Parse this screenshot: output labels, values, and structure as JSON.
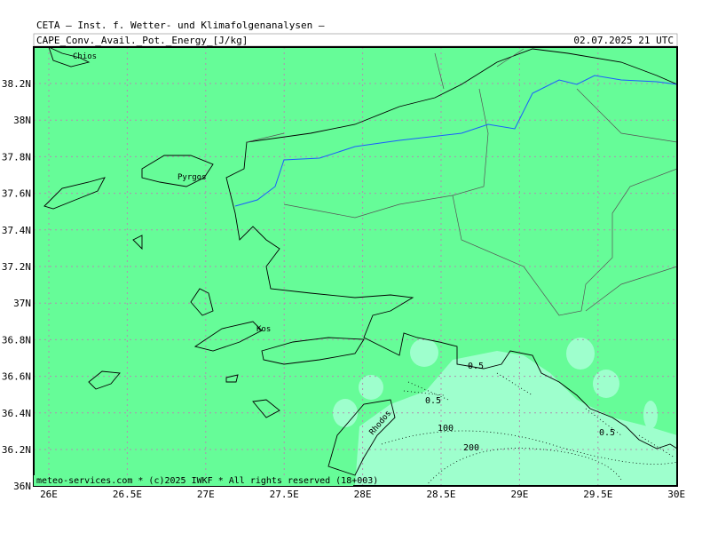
{
  "header": {
    "institute": "CETA — Inst. f. Wetter- und Klimafolgenanalysen —",
    "title": "CAPE_Conv._Avail._Pot._Energy_[J/kg]",
    "date": "02.07.2025 21 UTC"
  },
  "map": {
    "lat_labels": [
      "38.2N",
      "38N",
      "37.8N",
      "37.6N",
      "37.4N",
      "37.2N",
      "37N",
      "36.8N",
      "36.6N",
      "36.4N",
      "36.2N",
      "36N"
    ],
    "lon_labels": [
      "26E",
      "26.5E",
      "27E",
      "27.5E",
      "28E",
      "28.5E",
      "29E",
      "29.5E",
      "30E"
    ],
    "places": [
      "Chios",
      "Pyrgos",
      "Kos",
      "Rhodos"
    ],
    "contour_labels": [
      "0.5",
      "0.5",
      "0.5",
      "100",
      "200"
    ]
  },
  "footer": "meteo-services.com * (c)2025 IWKF * All rights reserved (18+003)"
}
